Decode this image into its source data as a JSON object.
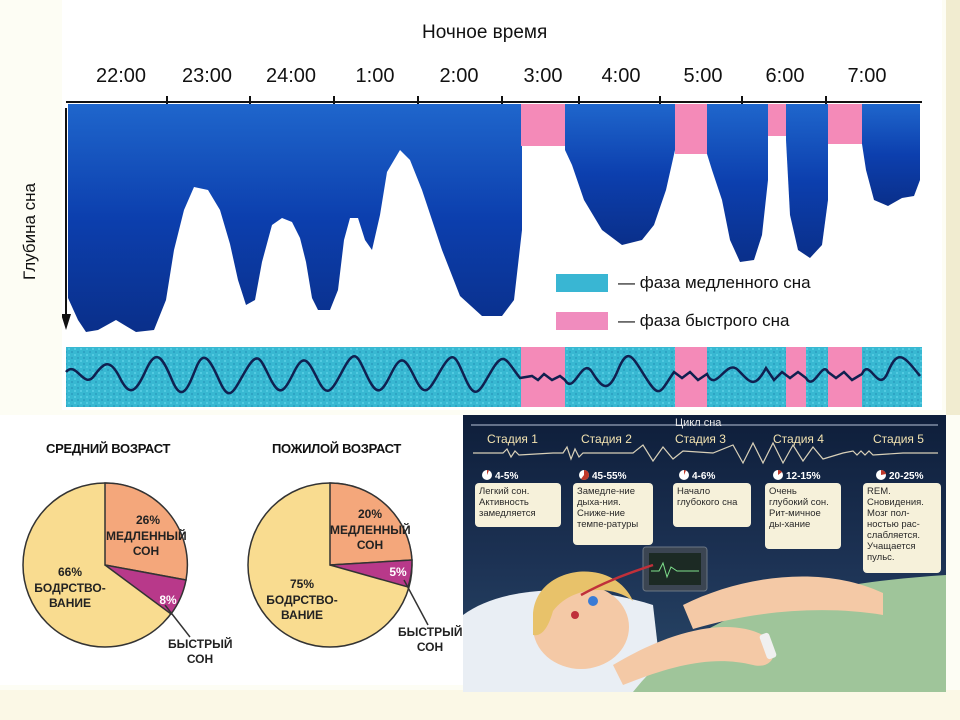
{
  "hypnogram": {
    "title": "Ночное время",
    "y_label": "Глубина сна",
    "hours": [
      "22:00",
      "23:00",
      "24:00",
      "1:00",
      "2:00",
      "3:00",
      "4:00",
      "5:00",
      "6:00",
      "7:00"
    ],
    "legend": [
      {
        "label": "— фаза медленного сна",
        "color": "#39b6d3"
      },
      {
        "label": "— фаза быстрого сна",
        "color": "#f08cbe"
      }
    ],
    "colors": {
      "deep": "#0b3aa8",
      "light": "#2e7bd6",
      "rem": "#f48ab8",
      "eeg_bg": "#38b8d2",
      "eeg_line": "#102050"
    }
  },
  "pies": [
    {
      "title": "СРЕДНИЙ ВОЗРАСТ",
      "slices": [
        {
          "label": "МЕДЛЕННЫЙ СОН",
          "pct_text": "26%",
          "value": 26,
          "color": "#f4a77b"
        },
        {
          "label": "БЫСТРЫЙ СОН",
          "pct_text": "8%",
          "value": 8,
          "color": "#b8398a"
        },
        {
          "label": "БОДРСТВО-ВАНИЕ",
          "pct_text": "66%",
          "value": 66,
          "color": "#f9dc90"
        }
      ]
    },
    {
      "title": "ПОЖИЛОЙ ВОЗРАСТ",
      "slices": [
        {
          "label": "МЕДЛЕННЫЙ СОН",
          "pct_text": "20%",
          "value": 20,
          "color": "#f4a77b"
        },
        {
          "label": "БЫСТРЫЙ СОН",
          "pct_text": "5%",
          "value": 5,
          "color": "#b8398a"
        },
        {
          "label": "БОДРСТВО-ВАНИЕ",
          "pct_text": "75%",
          "value": 75,
          "color": "#f9dc90"
        }
      ]
    }
  ],
  "cycle": {
    "title": "Цикл сна",
    "stages": [
      {
        "name": "Стадия 1",
        "pct": "4-5%",
        "desc": "Легкий сон. Активность замедляется"
      },
      {
        "name": "Стадия 2",
        "pct": "45-55%",
        "desc": "Замедле-ние дыха-ния. Сниже-ние темпе-ратуры"
      },
      {
        "name": "Стадия 3",
        "pct": "4-6%",
        "desc": "Начало глубокого сна"
      },
      {
        "name": "Стадия 4",
        "pct": "12-15%",
        "desc": "Очень глубокий сон. Рит-мичное ды-хание"
      },
      {
        "name": "Стадия 5",
        "pct": "20-25%",
        "desc": "REM. Сновидения. Мозг пол-ностью рас-слабляется. Учащается пульс."
      }
    ]
  }
}
